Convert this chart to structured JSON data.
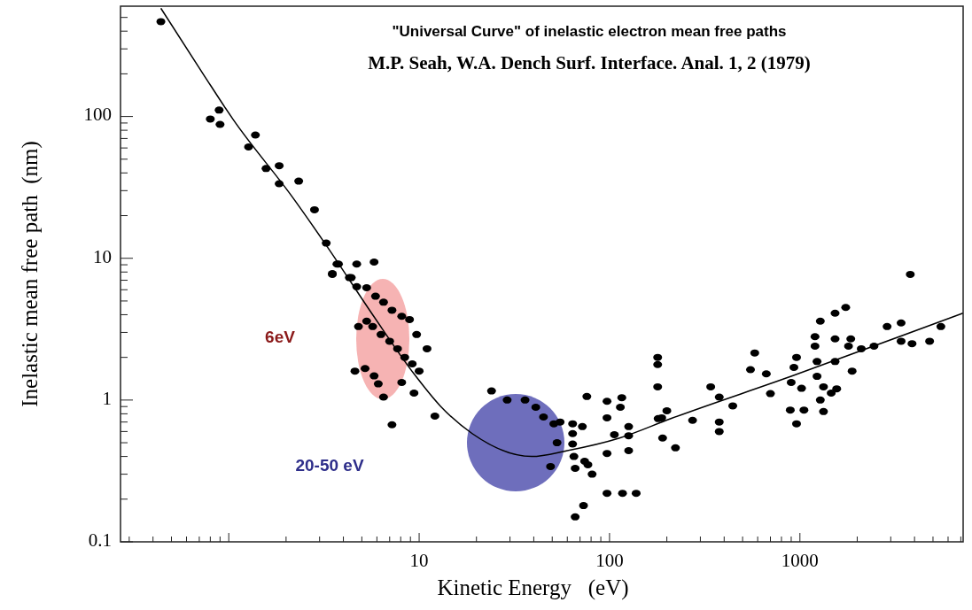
{
  "chart_data": {
    "type": "scatter",
    "title": "\"Universal Curve\" of inelastic electron mean free paths",
    "subtitle": "M.P. Seah, W.A. Dench Surf. Interface. Anal. 1, 2 (1979)",
    "xlabel": "Kinetic Energy   (eV)",
    "ylabel": "Inelastic mean free path  (nm)",
    "log": "xy",
    "xlim": [
      0.27,
      7200
    ],
    "ylim": [
      0.1,
      600
    ],
    "xticks": [
      {
        "value": 0.3,
        "label": null
      },
      {
        "value": 0.4,
        "label": null
      },
      {
        "value": 0.5,
        "label": null
      },
      {
        "value": 0.6,
        "label": null
      },
      {
        "value": 0.7,
        "label": null
      },
      {
        "value": 0.8,
        "label": null
      },
      {
        "value": 0.9,
        "label": null
      },
      {
        "value": 1,
        "label": null
      },
      {
        "value": 2,
        "label": null
      },
      {
        "value": 3,
        "label": null
      },
      {
        "value": 4,
        "label": null
      },
      {
        "value": 5,
        "label": null
      },
      {
        "value": 6,
        "label": null
      },
      {
        "value": 7,
        "label": null
      },
      {
        "value": 8,
        "label": null
      },
      {
        "value": 9,
        "label": null
      },
      10,
      {
        "value": 20,
        "label": null
      },
      {
        "value": 30,
        "label": null
      },
      {
        "value": 40,
        "label": null
      },
      {
        "value": 50,
        "label": null
      },
      {
        "value": 60,
        "label": null
      },
      {
        "value": 70,
        "label": null
      },
      {
        "value": 80,
        "label": null
      },
      {
        "value": 90,
        "label": null
      },
      100,
      {
        "value": 200,
        "label": null
      },
      {
        "value": 300,
        "label": null
      },
      {
        "value": 400,
        "label": null
      },
      {
        "value": 500,
        "label": null
      },
      {
        "value": 600,
        "label": null
      },
      {
        "value": 700,
        "label": null
      },
      {
        "value": 800,
        "label": null
      },
      {
        "value": 900,
        "label": null
      },
      1000,
      {
        "value": 2000,
        "label": null
      },
      {
        "value": 3000,
        "label": null
      },
      {
        "value": 4000,
        "label": null
      },
      {
        "value": 5000,
        "label": null
      },
      {
        "value": 6000,
        "label": null
      },
      {
        "value": 7000,
        "label": null
      }
    ],
    "yticks": [
      0.1,
      {
        "value": 0.2,
        "label": null
      },
      {
        "value": 0.3,
        "label": null
      },
      {
        "value": 0.4,
        "label": null
      },
      {
        "value": 0.5,
        "label": null
      },
      {
        "value": 0.6,
        "label": null
      },
      {
        "value": 0.7,
        "label": null
      },
      {
        "value": 0.8,
        "label": null
      },
      {
        "value": 0.9,
        "label": null
      },
      1,
      {
        "value": 2,
        "label": null
      },
      {
        "value": 3,
        "label": null
      },
      {
        "value": 4,
        "label": null
      },
      {
        "value": 5,
        "label": null
      },
      {
        "value": 6,
        "label": null
      },
      {
        "value": 7,
        "label": null
      },
      {
        "value": 8,
        "label": null
      },
      {
        "value": 9,
        "label": null
      },
      10,
      {
        "value": 20,
        "label": null
      },
      {
        "value": 30,
        "label": null
      },
      {
        "value": 40,
        "label": null
      },
      {
        "value": 50,
        "label": null
      },
      {
        "value": 60,
        "label": null
      },
      {
        "value": 70,
        "label": null
      },
      {
        "value": 80,
        "label": null
      },
      {
        "value": 90,
        "label": null
      },
      100,
      {
        "value": 200,
        "label": null
      },
      {
        "value": 300,
        "label": null
      },
      {
        "value": 400,
        "label": null
      },
      {
        "value": 500,
        "label": null
      }
    ],
    "grid": false,
    "marker": "circle",
    "annotations": [
      "6eV",
      "20-50 eV"
    ],
    "series": [
      {
        "type": "line",
        "color": "#000000",
        "marker": "none",
        "x": [
          0.44,
          0.74,
          1.05,
          2.16,
          3.3,
          5.7,
          9.4,
          12.9,
          19,
          39,
          60,
          113,
          210,
          900,
          7200
        ],
        "values": [
          580,
          196,
          96,
          27,
          12,
          4.0,
          1.53,
          0.91,
          0.58,
          0.4,
          0.44,
          0.54,
          0.74,
          1.47,
          4.1
        ]
      },
      {
        "color": "#000000",
        "x": [
          0.44,
          0.8,
          0.89,
          0.9,
          1.38,
          1.27,
          1.57,
          1.84,
          1.84,
          2.33,
          2.82,
          3.25,
          3.77,
          3.5,
          4.7,
          5.8,
          4.4,
          3.7,
          3.5,
          4.3,
          4.7,
          5.3,
          5.9,
          6.5,
          7.2,
          8.1,
          8.9,
          9.7,
          11,
          5.3,
          4.8,
          5.7,
          6.3,
          7.0,
          7.7,
          8.4,
          9.2,
          10,
          4.6,
          5.2,
          5.8,
          6.1,
          8.1,
          6.5,
          9.4,
          7.2,
          12.1,
          24,
          29,
          36,
          41,
          45,
          51,
          55,
          53,
          49,
          64,
          64,
          64,
          65,
          66,
          72,
          74,
          77,
          81,
          73,
          66,
          76,
          97,
          97,
          97,
          116,
          114,
          106,
          126,
          126,
          126,
          97,
          117,
          138,
          179,
          179,
          188,
          179,
          200,
          180,
          190,
          222,
          273,
          340,
          377,
          444,
          377,
          377,
          579,
          550,
          666,
          700,
          960,
          930,
          900,
          1020,
          890,
          1050,
          960,
          1200,
          1200,
          1230,
          1230,
          1280,
          1330,
          1280,
          1330,
          1530,
          1740,
          1530,
          1530,
          1560,
          1460,
          1850,
          1800,
          1880,
          2100,
          2450,
          2870,
          3400,
          3400,
          3880,
          3800,
          4800,
          5500
        ],
        "values": [
          467,
          96,
          111,
          88,
          74,
          61,
          43,
          45,
          33.6,
          35,
          22,
          12.8,
          9.1,
          7.8,
          9.1,
          9.4,
          7.3,
          9.1,
          7.7,
          7.3,
          6.3,
          6.2,
          5.4,
          4.9,
          4.3,
          3.9,
          3.7,
          2.9,
          2.3,
          3.6,
          3.3,
          3.3,
          2.9,
          2.6,
          2.3,
          2.0,
          1.8,
          1.6,
          1.6,
          1.67,
          1.48,
          1.3,
          1.33,
          1.05,
          1.12,
          0.67,
          0.77,
          1.16,
          1.0,
          1.0,
          0.89,
          0.76,
          0.68,
          0.7,
          0.5,
          0.34,
          0.68,
          0.58,
          0.49,
          0.4,
          0.33,
          0.65,
          0.37,
          0.35,
          0.3,
          0.18,
          0.15,
          1.06,
          0.98,
          0.75,
          0.42,
          1.04,
          0.89,
          0.57,
          0.65,
          0.56,
          0.44,
          0.22,
          0.22,
          0.22,
          1.78,
          1.24,
          0.75,
          2.0,
          0.84,
          0.74,
          0.54,
          0.46,
          0.72,
          1.24,
          1.05,
          0.91,
          0.7,
          0.6,
          2.15,
          1.64,
          1.53,
          1.11,
          2.0,
          1.7,
          1.33,
          1.21,
          0.85,
          0.85,
          0.68,
          2.8,
          2.4,
          1.87,
          1.47,
          3.6,
          1.24,
          1.0,
          0.83,
          4.1,
          4.5,
          2.7,
          1.87,
          1.2,
          1.12,
          2.7,
          2.4,
          1.6,
          2.3,
          2.4,
          3.3,
          3.5,
          2.6,
          2.5,
          7.7,
          2.6,
          3.3
        ]
      }
    ]
  }
}
